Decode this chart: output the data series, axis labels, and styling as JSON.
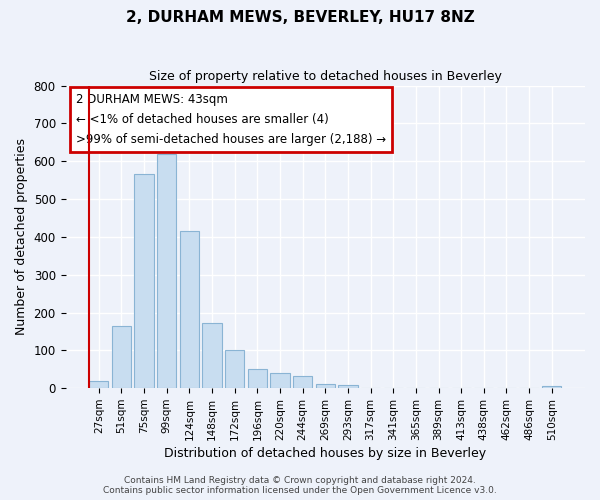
{
  "title": "2, DURHAM MEWS, BEVERLEY, HU17 8NZ",
  "subtitle": "Size of property relative to detached houses in Beverley",
  "xlabel": "Distribution of detached houses by size in Beverley",
  "ylabel": "Number of detached properties",
  "bar_color": "#c8ddf0",
  "bar_edge_color": "#8ab4d4",
  "categories": [
    "27sqm",
    "51sqm",
    "75sqm",
    "99sqm",
    "124sqm",
    "148sqm",
    "172sqm",
    "196sqm",
    "220sqm",
    "244sqm",
    "269sqm",
    "293sqm",
    "317sqm",
    "341sqm",
    "365sqm",
    "389sqm",
    "413sqm",
    "438sqm",
    "462sqm",
    "486sqm",
    "510sqm"
  ],
  "values": [
    18,
    165,
    565,
    620,
    415,
    172,
    102,
    50,
    40,
    33,
    11,
    9,
    1,
    0,
    0,
    0,
    0,
    0,
    0,
    0,
    7
  ],
  "ylim": [
    0,
    800
  ],
  "yticks": [
    0,
    100,
    200,
    300,
    400,
    500,
    600,
    700,
    800
  ],
  "annotation_lines": [
    "2 DURHAM MEWS: 43sqm",
    "← <1% of detached houses are smaller (4)",
    ">99% of semi-detached houses are larger (2,188) →"
  ],
  "marker_color": "#cc0000",
  "footer_line1": "Contains HM Land Registry data © Crown copyright and database right 2024.",
  "footer_line2": "Contains public sector information licensed under the Open Government Licence v3.0.",
  "background_color": "#eef2fa",
  "plot_bg_color": "#eef2fa",
  "grid_color": "#ffffff"
}
